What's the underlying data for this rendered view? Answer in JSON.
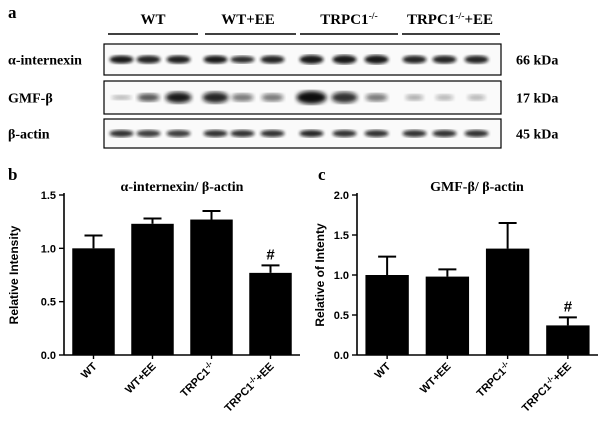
{
  "figure": {
    "panel_a_label": "a",
    "group_labels": [
      "WT",
      "WT+EE",
      "TRPC1",
      "TRPC1"
    ],
    "group_sups": [
      "",
      "",
      "-/-",
      "-/-"
    ],
    "group_suffix": [
      "",
      "",
      "",
      "+EE"
    ],
    "blots": [
      {
        "label": "α-internexin",
        "size": "66 kDa"
      },
      {
        "label": "GMF-β",
        "size": "17 kDa"
      },
      {
        "label": "β-actin",
        "size": "45 kDa"
      }
    ]
  },
  "chart_data": [
    {
      "type": "bar",
      "panel": "b",
      "title": "α-internexin/ β-actin",
      "ylabel": "Relative Intensity",
      "ylim": [
        0,
        1.5
      ],
      "yticks": [
        "0.0",
        "0.5",
        "1.0",
        "1.5"
      ],
      "categories": [
        "WT",
        "WT+EE",
        "TRPC1-/-",
        "TRPC1-/-+EE"
      ],
      "cat_base": [
        "WT",
        "WT+EE",
        "TRPC1",
        "TRPC1"
      ],
      "cat_sup": [
        "",
        "",
        "-/-",
        "-/-"
      ],
      "cat_suffix": [
        "",
        "",
        "",
        "+EE"
      ],
      "values": [
        1.0,
        1.23,
        1.27,
        0.77
      ],
      "errors": [
        0.12,
        0.05,
        0.08,
        0.07
      ],
      "annotations": [
        {
          "category": "TRPC1-/-+EE",
          "text": "#"
        }
      ],
      "color": "#000000"
    },
    {
      "type": "bar",
      "panel": "c",
      "title": "GMF-β/ β-actin",
      "ylabel": "Relative of Intenty",
      "ylim": [
        0,
        2.0
      ],
      "yticks": [
        "0.0",
        "0.5",
        "1.0",
        "1.5",
        "2.0"
      ],
      "categories": [
        "WT",
        "WT+EE",
        "TRPC1-/-",
        "TRPC1-/-+EE"
      ],
      "cat_base": [
        "WT",
        "WT+EE",
        "TRPC1",
        "TRPC1"
      ],
      "cat_sup": [
        "",
        "",
        "-/-",
        "-/-"
      ],
      "cat_suffix": [
        "",
        "",
        "",
        "+EE"
      ],
      "values": [
        1.0,
        0.98,
        1.33,
        0.37
      ],
      "errors": [
        0.23,
        0.09,
        0.32,
        0.1
      ],
      "annotations": [
        {
          "category": "TRPC1-/-+EE",
          "text": "#"
        }
      ],
      "color": "#000000"
    }
  ]
}
